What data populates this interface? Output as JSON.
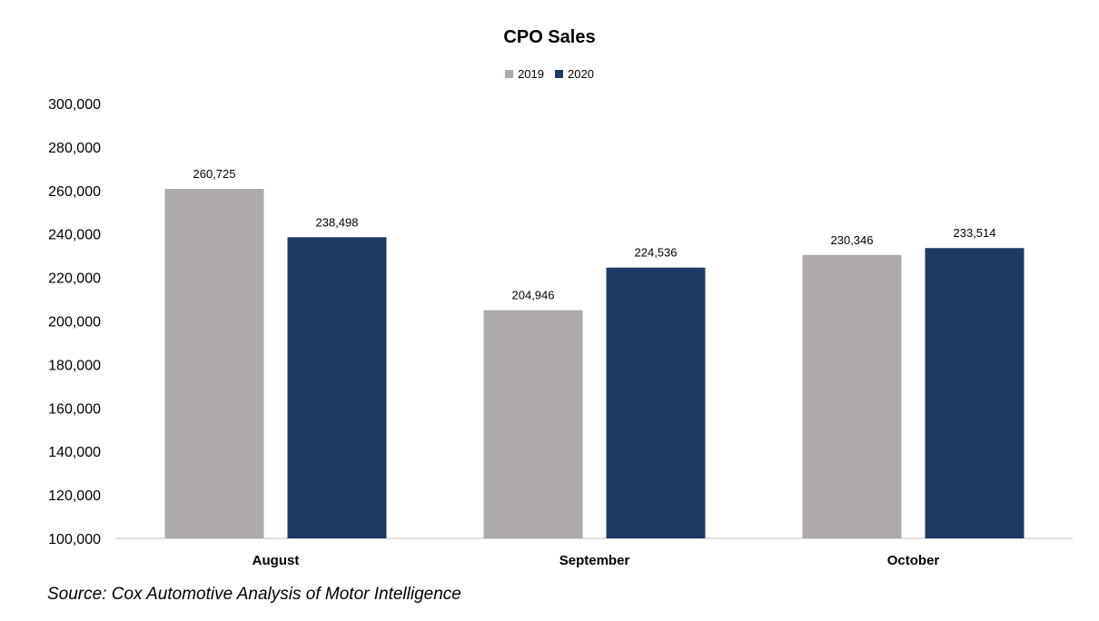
{
  "chart_data": {
    "type": "bar",
    "title": "CPO Sales",
    "categories": [
      "August",
      "September",
      "October"
    ],
    "series": [
      {
        "name": "2019",
        "color": "#aeaaaa",
        "values": [
          260725,
          204946,
          230346
        ],
        "labels": [
          "260,725",
          "204,946",
          "230,346"
        ]
      },
      {
        "name": "2020",
        "color": "#203864",
        "values": [
          238498,
          224536,
          233514
        ],
        "labels": [
          "238,498",
          "224,536",
          "233,514"
        ]
      }
    ],
    "ylim": [
      100000,
      300000
    ],
    "yticks": [
      100000,
      120000,
      140000,
      160000,
      180000,
      200000,
      220000,
      240000,
      260000,
      280000,
      300000
    ],
    "ytick_labels": [
      "100,000",
      "120,000",
      "140,000",
      "160,000",
      "180,000",
      "200,000",
      "220,000",
      "240,000",
      "260,000",
      "280,000",
      "300,000"
    ],
    "grid": false,
    "legend_position": "top-center",
    "xlabel": "",
    "ylabel": ""
  },
  "source_note": "Source: Cox Automotive Analysis of Motor Intelligence"
}
